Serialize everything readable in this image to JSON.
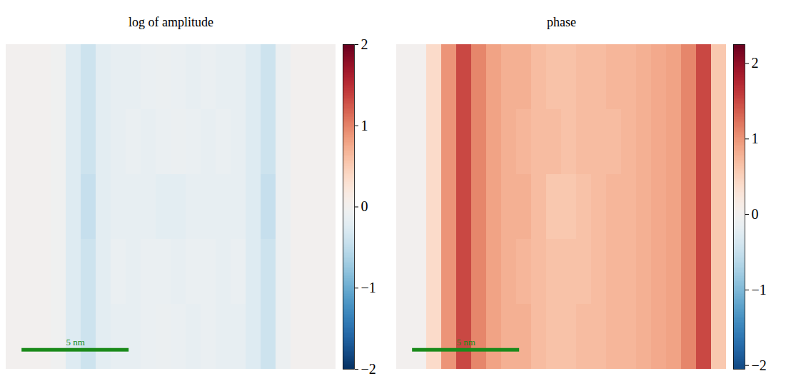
{
  "chart_data": [
    {
      "type": "heatmap",
      "title": "log of amplitude",
      "color": "rdbu",
      "tick_labels": false,
      "xlim": [
        0,
        15.4
      ],
      "ylim": [
        0,
        15.2
      ],
      "cells": [
        [
          0,
          0,
          0,
          -0.05,
          -0.25,
          -0.4,
          -0.2,
          -0.15,
          -0.15,
          -0.12,
          -0.1,
          -0.12,
          -0.15,
          -0.12,
          -0.15,
          -0.15,
          -0.25,
          -0.4,
          -0.1,
          0,
          0,
          0
        ],
        [
          0,
          0,
          0,
          -0.05,
          -0.25,
          -0.4,
          -0.2,
          -0.15,
          -0.12,
          -0.15,
          -0.12,
          -0.1,
          -0.12,
          -0.15,
          -0.12,
          -0.15,
          -0.25,
          -0.4,
          -0.1,
          0,
          0,
          0
        ],
        [
          0,
          0,
          0,
          -0.05,
          -0.25,
          -0.45,
          -0.2,
          -0.15,
          -0.15,
          -0.15,
          -0.2,
          -0.2,
          -0.15,
          -0.15,
          -0.15,
          -0.15,
          -0.25,
          -0.45,
          -0.1,
          0,
          0,
          0
        ],
        [
          0,
          0,
          0,
          -0.05,
          -0.25,
          -0.4,
          -0.2,
          -0.12,
          -0.15,
          -0.12,
          -0.12,
          -0.15,
          -0.12,
          -0.12,
          -0.15,
          -0.12,
          -0.25,
          -0.4,
          -0.1,
          0,
          0,
          0
        ],
        [
          0,
          0,
          0,
          -0.05,
          -0.25,
          -0.4,
          -0.2,
          -0.15,
          -0.15,
          -0.12,
          -0.1,
          -0.12,
          -0.15,
          -0.12,
          -0.15,
          -0.15,
          -0.25,
          -0.4,
          -0.1,
          0,
          0,
          0
        ]
      ],
      "colorbar": {
        "range": [
          -2,
          2
        ],
        "ticks": [
          -2,
          -1,
          0,
          1,
          2
        ]
      },
      "scale_bar": {
        "value": 5,
        "label": "5 nm",
        "color": "#1a8a1a"
      }
    },
    {
      "type": "heatmap",
      "title": "phase",
      "color": "rdbu",
      "tick_labels": false,
      "xlim": [
        0,
        15.4
      ],
      "ylim": [
        0,
        15.2
      ],
      "cells": [
        [
          0,
          0,
          0.4,
          1.0,
          1.5,
          1.1,
          0.9,
          0.8,
          0.8,
          0.7,
          0.65,
          0.65,
          0.7,
          0.7,
          0.75,
          0.75,
          0.8,
          0.85,
          0.9,
          1.1,
          1.5,
          0.6
        ],
        [
          0,
          0,
          0.4,
          1.0,
          1.5,
          1.1,
          0.9,
          0.8,
          0.75,
          0.7,
          0.7,
          0.65,
          0.7,
          0.7,
          0.7,
          0.75,
          0.8,
          0.85,
          0.9,
          1.1,
          1.5,
          0.6
        ],
        [
          0,
          0,
          0.4,
          1.0,
          1.5,
          1.1,
          0.9,
          0.8,
          0.8,
          0.7,
          0.6,
          0.6,
          0.65,
          0.7,
          0.75,
          0.75,
          0.8,
          0.85,
          0.9,
          1.1,
          1.5,
          0.6
        ],
        [
          0,
          0,
          0.4,
          1.0,
          1.5,
          1.1,
          0.9,
          0.8,
          0.75,
          0.7,
          0.65,
          0.65,
          0.65,
          0.7,
          0.75,
          0.75,
          0.8,
          0.85,
          0.9,
          1.1,
          1.5,
          0.6
        ],
        [
          0,
          0,
          0.4,
          1.0,
          1.5,
          1.1,
          0.9,
          0.8,
          0.8,
          0.7,
          0.65,
          0.65,
          0.7,
          0.7,
          0.75,
          0.75,
          0.8,
          0.85,
          0.9,
          1.1,
          1.5,
          0.6
        ]
      ],
      "colorbar": {
        "range": [
          -2.05,
          2.25
        ],
        "ticks": [
          -2,
          -1,
          0,
          1,
          2
        ]
      },
      "scale_bar": {
        "value": 5,
        "label": "5 nm",
        "color": "#1a8a1a"
      }
    }
  ]
}
